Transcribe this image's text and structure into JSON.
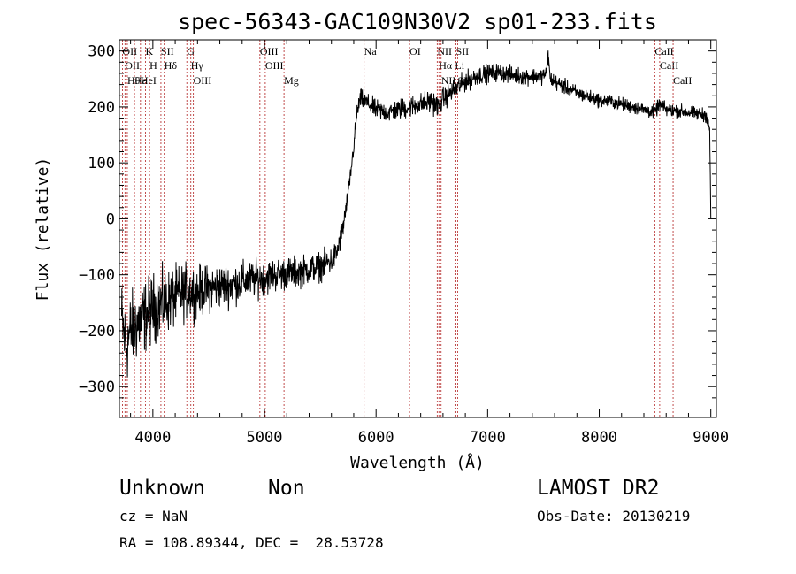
{
  "chart_data": {
    "type": "line",
    "title": "spec-56343-GAC109N30V2_sp01-233.fits",
    "xlabel": "Wavelength (Å)",
    "ylabel": "Flux (relative)",
    "xlim": [
      3700,
      9050
    ],
    "ylim": [
      -355,
      320
    ],
    "x_ticks": [
      4000,
      5000,
      6000,
      7000,
      8000,
      9000
    ],
    "x_tick_labels": [
      "4000",
      "5000",
      "6000",
      "7000",
      "8000",
      "9000"
    ],
    "y_ticks": [
      -300,
      -200,
      -100,
      0,
      100,
      200,
      300
    ],
    "y_tick_labels": [
      "−300",
      "−200",
      "−100",
      "0",
      "100",
      "200",
      "300"
    ],
    "series": [
      {
        "name": "flux",
        "color": "#000000",
        "x": [
          3720,
          3760,
          3800,
          3850,
          3900,
          3950,
          4000,
          4100,
          4200,
          4300,
          4400,
          4500,
          4600,
          4700,
          4800,
          4900,
          5000,
          5100,
          5200,
          5300,
          5400,
          5500,
          5600,
          5650,
          5700,
          5750,
          5800,
          5830,
          5860,
          5900,
          6000,
          6100,
          6200,
          6300,
          6400,
          6500,
          6560,
          6600,
          6700,
          6800,
          6900,
          7000,
          7100,
          7200,
          7300,
          7400,
          7480,
          7530,
          7540,
          7560,
          7600,
          7700,
          7800,
          7900,
          8000,
          8100,
          8200,
          8300,
          8400,
          8500,
          8540,
          8600,
          8700,
          8800,
          8900,
          8960,
          8990,
          9000
        ],
        "y": [
          -180,
          -230,
          -200,
          -190,
          -180,
          -170,
          -160,
          -150,
          -140,
          -130,
          -130,
          -125,
          -120,
          -118,
          -112,
          -108,
          -105,
          -100,
          -98,
          -95,
          -90,
          -85,
          -75,
          -60,
          -20,
          40,
          130,
          190,
          215,
          210,
          195,
          190,
          195,
          200,
          205,
          210,
          200,
          215,
          230,
          245,
          255,
          260,
          262,
          258,
          255,
          255,
          255,
          260,
          300,
          250,
          245,
          235,
          225,
          218,
          212,
          210,
          205,
          200,
          195,
          190,
          205,
          195,
          193,
          190,
          187,
          185,
          160,
          0
        ]
      }
    ],
    "noise_amplitude": [
      [
        3700,
        35
      ],
      [
        4100,
        28
      ],
      [
        4500,
        20
      ],
      [
        5000,
        15
      ],
      [
        5600,
        12
      ],
      [
        5800,
        8
      ],
      [
        6500,
        10
      ],
      [
        7000,
        8
      ],
      [
        8000,
        6
      ],
      [
        9000,
        6
      ]
    ],
    "lines": [
      {
        "x": 3727,
        "label": "OII"
      },
      {
        "x": 3750,
        "label": "OII"
      },
      {
        "x": 3771,
        "label": "Hθ"
      },
      {
        "x": 3835,
        "label": "Hε"
      },
      {
        "x": 3889,
        "label": "HeI"
      },
      {
        "x": 3934,
        "label": "K"
      },
      {
        "x": 3970,
        "label": "H"
      },
      {
        "x": 4072,
        "label": "SII"
      },
      {
        "x": 4102,
        "label": "Hδ"
      },
      {
        "x": 4304,
        "label": "G"
      },
      {
        "x": 4340,
        "label": "Hγ"
      },
      {
        "x": 4363,
        "label": "OIII"
      },
      {
        "x": 4959,
        "label": "OIII"
      },
      {
        "x": 5007,
        "label": "OIII"
      },
      {
        "x": 5175,
        "label": "Mg"
      },
      {
        "x": 5893,
        "label": "Na"
      },
      {
        "x": 6300,
        "label": "OI"
      },
      {
        "x": 6548,
        "label": "NII"
      },
      {
        "x": 6563,
        "label": "Hα"
      },
      {
        "x": 6583,
        "label": "NII"
      },
      {
        "x": 6707,
        "label": "Li"
      },
      {
        "x": 6716,
        "label": "SII"
      },
      {
        "x": 6731,
        "label": "SII"
      },
      {
        "x": 8498,
        "label": "CaII"
      },
      {
        "x": 8542,
        "label": "CaII"
      },
      {
        "x": 8662,
        "label": "CaII"
      }
    ]
  },
  "footer": {
    "class_text": "Unknown",
    "subclass_text": "Non",
    "survey": "LAMOST DR2",
    "cz": "cz = NaN",
    "obs_date": "Obs-Date: 20130219",
    "radec": "RA = 108.89344, DEC =  28.53728"
  }
}
